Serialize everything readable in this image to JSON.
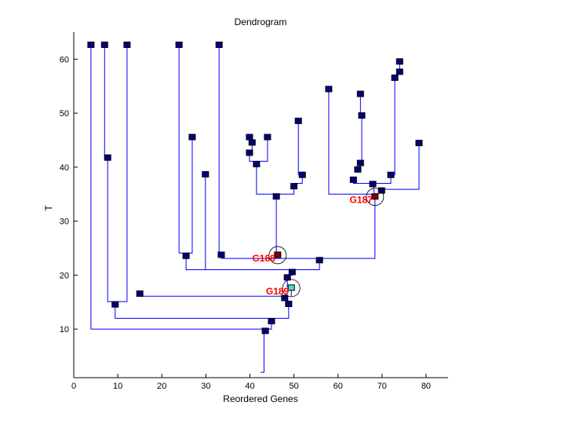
{
  "chart_data": {
    "type": "dendrogram",
    "title": "Dendrogram",
    "xlabel": "Reordered Genes",
    "ylabel": "T",
    "xlim": [
      0,
      85
    ],
    "ylim": [
      1,
      65
    ],
    "xticks": [
      0,
      10,
      20,
      30,
      40,
      50,
      60,
      70,
      80
    ],
    "yticks": [
      10,
      20,
      30,
      40,
      50,
      60
    ],
    "grid": false,
    "colors": {
      "edge": "#0000ff",
      "node": "#000080",
      "highlight_red": "#800000",
      "highlight_cyan": "#40e0c0",
      "label": "#ff0000"
    },
    "nodes": [
      [
        43.5,
        9.6
      ],
      [
        44.9,
        11.4
      ],
      [
        48.8,
        14.6
      ],
      [
        47.9,
        15.7
      ],
      [
        48.5,
        19.5
      ],
      [
        49.6,
        20.5
      ],
      [
        55.8,
        22.7
      ],
      [
        33.5,
        23.7
      ],
      [
        25.5,
        23.5
      ],
      [
        15.0,
        16.5
      ],
      [
        9.4,
        14.5
      ],
      [
        7.7,
        41.7
      ],
      [
        3.9,
        62.6
      ],
      [
        7.0,
        62.6
      ],
      [
        12.1,
        62.6
      ],
      [
        23.9,
        62.6
      ],
      [
        33.0,
        62.6
      ],
      [
        26.9,
        45.5
      ],
      [
        29.9,
        38.6
      ],
      [
        46.0,
        34.5
      ],
      [
        50.0,
        36.4
      ],
      [
        51.9,
        38.5
      ],
      [
        51.0,
        48.5
      ],
      [
        41.5,
        40.5
      ],
      [
        39.9,
        42.6
      ],
      [
        40.5,
        44.5
      ],
      [
        39.9,
        45.5
      ],
      [
        44.0,
        45.5
      ],
      [
        57.9,
        54.4
      ],
      [
        69.9,
        35.6
      ],
      [
        67.9,
        36.8
      ],
      [
        63.5,
        37.6
      ],
      [
        64.5,
        39.5
      ],
      [
        65.1,
        40.7
      ],
      [
        65.4,
        49.5
      ],
      [
        65.1,
        53.5
      ],
      [
        72.0,
        38.5
      ],
      [
        72.9,
        56.5
      ],
      [
        74.0,
        57.6
      ],
      [
        74.0,
        59.5
      ],
      [
        78.4,
        44.4
      ]
    ],
    "highlighted": [
      {
        "label": "G187",
        "x": 68.4,
        "y": 34.5,
        "color": "#800000"
      },
      {
        "label": "G188",
        "x": 46.3,
        "y": 23.7,
        "color": "#800000"
      },
      {
        "label": "G189",
        "x": 49.4,
        "y": 17.6,
        "color": "#40e0c0"
      }
    ],
    "edges": [
      [
        [
          42.4,
          2.0
        ],
        [
          43.2,
          2.0
        ],
        [
          43.2,
          9.6
        ]
      ],
      [
        [
          3.9,
          62.6
        ],
        [
          3.9,
          10.0
        ],
        [
          44.9,
          10.0
        ],
        [
          44.9,
          11.4
        ]
      ],
      [
        [
          9.4,
          14.5
        ],
        [
          9.4,
          12.0
        ],
        [
          48.8,
          12.0
        ],
        [
          48.8,
          14.6
        ]
      ],
      [
        [
          7.0,
          62.6
        ],
        [
          7.0,
          42.0
        ],
        [
          7.7,
          42.0
        ]
      ],
      [
        [
          7.7,
          41.7
        ],
        [
          7.7,
          15.1
        ],
        [
          12.1,
          15.1
        ],
        [
          12.1,
          62.6
        ]
      ],
      [
        [
          15.0,
          16.5
        ],
        [
          15.0,
          16.1
        ],
        [
          47.9,
          16.1
        ]
      ],
      [
        [
          48.5,
          15.7
        ],
        [
          48.5,
          14.6
        ]
      ],
      [
        [
          49.4,
          17.6
        ],
        [
          49.4,
          16.1
        ]
      ],
      [
        [
          48.5,
          19.5
        ],
        [
          48.5,
          17.8
        ],
        [
          49.4,
          17.8
        ]
      ],
      [
        [
          49.6,
          20.5
        ],
        [
          49.6,
          20.0
        ],
        [
          48.8,
          20.0
        ]
      ],
      [
        [
          25.5,
          23.5
        ],
        [
          25.5,
          21.0
        ],
        [
          55.8,
          21.0
        ],
        [
          55.8,
          22.7
        ]
      ],
      [
        [
          29.9,
          38.6
        ],
        [
          29.9,
          21.0
        ]
      ],
      [
        [
          23.9,
          62.6
        ],
        [
          23.9,
          24.1
        ],
        [
          26.9,
          24.1
        ],
        [
          26.9,
          45.5
        ]
      ],
      [
        [
          33.5,
          23.7
        ],
        [
          33.5,
          23.1
        ],
        [
          68.4,
          23.1
        ],
        [
          68.4,
          34.5
        ]
      ],
      [
        [
          33.0,
          62.6
        ],
        [
          33.0,
          23.7
        ]
      ],
      [
        [
          46.0,
          34.5
        ],
        [
          46.0,
          23.1
        ]
      ],
      [
        [
          41.5,
          40.5
        ],
        [
          41.5,
          35.0
        ],
        [
          50.0,
          35.0
        ],
        [
          50.0,
          36.4
        ]
      ],
      [
        [
          50.0,
          36.4
        ],
        [
          50.0,
          37.0
        ],
        [
          51.9,
          37.0
        ],
        [
          51.9,
          38.5
        ]
      ],
      [
        [
          51.0,
          48.5
        ],
        [
          51.0,
          38.5
        ]
      ],
      [
        [
          39.9,
          42.6
        ],
        [
          39.9,
          41.1
        ],
        [
          44.0,
          41.1
        ],
        [
          44.0,
          45.5
        ]
      ],
      [
        [
          41.5,
          40.5
        ],
        [
          41.5,
          41.1
        ]
      ],
      [
        [
          40.5,
          44.5
        ],
        [
          40.5,
          42.6
        ]
      ],
      [
        [
          57.9,
          54.4
        ],
        [
          57.9,
          35.0
        ],
        [
          68.4,
          35.0
        ]
      ],
      [
        [
          69.9,
          35.9
        ],
        [
          78.4,
          35.9
        ],
        [
          78.4,
          44.4
        ]
      ],
      [
        [
          63.5,
          37.6
        ],
        [
          63.5,
          37.0
        ],
        [
          72.0,
          37.0
        ],
        [
          72.0,
          38.5
        ]
      ],
      [
        [
          65.4,
          40.7
        ],
        [
          65.4,
          49.5
        ]
      ],
      [
        [
          65.1,
          49.5
        ],
        [
          65.1,
          53.5
        ]
      ],
      [
        [
          72.9,
          38.5
        ],
        [
          72.9,
          56.5
        ]
      ],
      [
        [
          74.0,
          57.6
        ],
        [
          74.0,
          59.5
        ]
      ],
      [
        [
          67.9,
          36.8
        ],
        [
          68.4,
          34.5
        ]
      ]
    ]
  }
}
